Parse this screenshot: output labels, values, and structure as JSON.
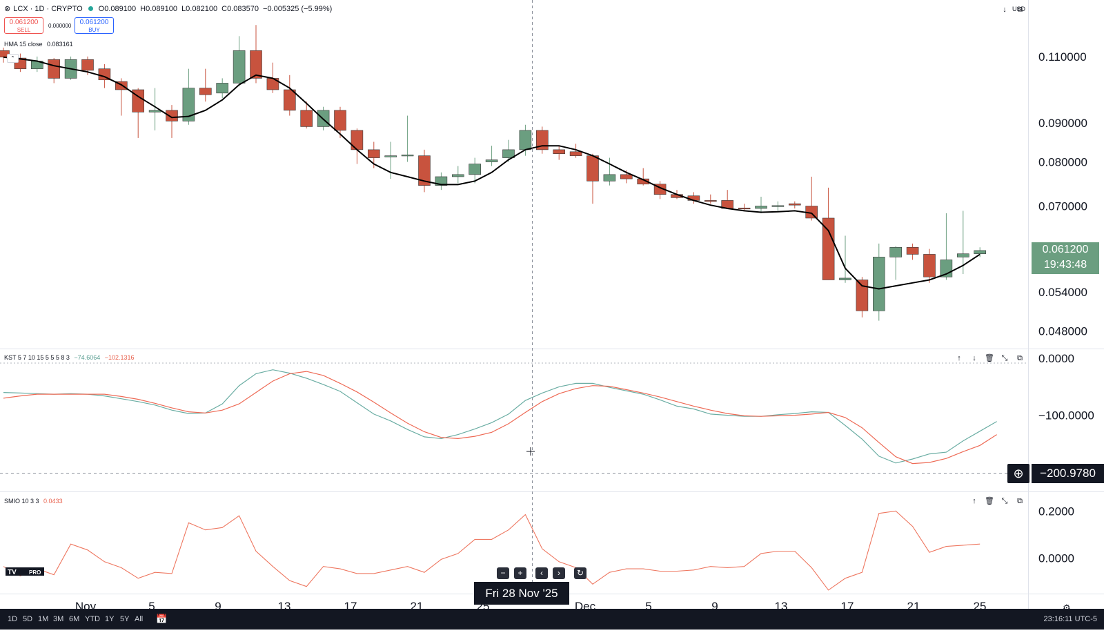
{
  "header": {
    "symbol": "LCX · 1D · CRYPTO",
    "open": "O0.089100",
    "high": "H0.089100",
    "low": "L0.082100",
    "close": "C0.083570",
    "change": "−0.005325 (−5.99%)",
    "sell_price": "0.061200",
    "sell_label": "SELL",
    "spread": "0.000000",
    "buy_price": "0.061200",
    "buy_label": "BUY",
    "currency": "USD"
  },
  "indicators": {
    "hma": {
      "label": "HMA 15 close",
      "value": "0.083161"
    },
    "kst": {
      "label": "KST 5 7 10 15 5 5 5 8 3",
      "value1": "−74.6064",
      "value2": "−102.1316"
    },
    "smio": {
      "label": "SMIO 10 3 3",
      "value": "0.0433"
    }
  },
  "tags": {
    "last_price": "0.061200",
    "countdown": "19:43:48",
    "crosshair_value": "−200.9780",
    "crosshair_date": "Fri 28 Nov '25"
  },
  "ranges": [
    "1D",
    "5D",
    "1M",
    "3M",
    "6M",
    "YTD",
    "1Y",
    "5Y",
    "All"
  ],
  "clock": "23:16:11 UTC-5",
  "colors": {
    "up": "#6b9e80",
    "down": "#c8533e",
    "hma": "#000000",
    "kst_line": "#6aada3",
    "kst_signal": "#ee6a55",
    "smio": "#ee7760",
    "last_price_bg": "#6b9e80"
  },
  "chart_data": [
    {
      "type": "candlestick",
      "title": "LCX · 1D · CRYPTO",
      "x_ticks": [
        "Nov",
        "5",
        "9",
        "13",
        "17",
        "21",
        "25",
        "Dec",
        "5",
        "9",
        "13",
        "17",
        "21",
        "25"
      ],
      "y_ticks": [
        "0.110000",
        "0.090000",
        "0.080000",
        "0.070000",
        "0.054000",
        "0.048000"
      ],
      "y_log": true,
      "ylim": [
        0.0455,
        0.1305
      ],
      "candles": [
        {
          "o": 0.112,
          "h": 0.113,
          "l": 0.108,
          "c": 0.1098
        },
        {
          "o": 0.1095,
          "h": 0.111,
          "l": 0.105,
          "c": 0.106
        },
        {
          "o": 0.106,
          "h": 0.11,
          "l": 0.105,
          "c": 0.1085
        },
        {
          "o": 0.109,
          "h": 0.1095,
          "l": 0.1015,
          "c": 0.103
        },
        {
          "o": 0.103,
          "h": 0.11,
          "l": 0.1025,
          "c": 0.109
        },
        {
          "o": 0.109,
          "h": 0.11,
          "l": 0.104,
          "c": 0.1055
        },
        {
          "o": 0.106,
          "h": 0.1075,
          "l": 0.1,
          "c": 0.1025
        },
        {
          "o": 0.102,
          "h": 0.103,
          "l": 0.092,
          "c": 0.0995
        },
        {
          "o": 0.0995,
          "h": 0.1,
          "l": 0.086,
          "c": 0.093
        },
        {
          "o": 0.093,
          "h": 0.1,
          "l": 0.088,
          "c": 0.0935
        },
        {
          "o": 0.0935,
          "h": 0.095,
          "l": 0.086,
          "c": 0.0905
        },
        {
          "o": 0.0905,
          "h": 0.106,
          "l": 0.0895,
          "c": 0.1
        },
        {
          "o": 0.1,
          "h": 0.106,
          "l": 0.096,
          "c": 0.098
        },
        {
          "o": 0.0985,
          "h": 0.103,
          "l": 0.097,
          "c": 0.1015
        },
        {
          "o": 0.1015,
          "h": 0.117,
          "l": 0.1005,
          "c": 0.112
        },
        {
          "o": 0.112,
          "h": 0.121,
          "l": 0.1015,
          "c": 0.103
        },
        {
          "o": 0.103,
          "h": 0.108,
          "l": 0.0985,
          "c": 0.0995
        },
        {
          "o": 0.0995,
          "h": 0.104,
          "l": 0.092,
          "c": 0.0935
        },
        {
          "o": 0.0935,
          "h": 0.096,
          "l": 0.0885,
          "c": 0.089
        },
        {
          "o": 0.089,
          "h": 0.0945,
          "l": 0.088,
          "c": 0.0935
        },
        {
          "o": 0.0935,
          "h": 0.0945,
          "l": 0.086,
          "c": 0.088
        },
        {
          "o": 0.088,
          "h": 0.0885,
          "l": 0.0795,
          "c": 0.083
        },
        {
          "o": 0.083,
          "h": 0.085,
          "l": 0.0785,
          "c": 0.081
        },
        {
          "o": 0.0812,
          "h": 0.085,
          "l": 0.076,
          "c": 0.0815
        },
        {
          "o": 0.0815,
          "h": 0.092,
          "l": 0.08,
          "c": 0.0817
        },
        {
          "o": 0.0815,
          "h": 0.083,
          "l": 0.073,
          "c": 0.0745
        },
        {
          "o": 0.0745,
          "h": 0.0775,
          "l": 0.0735,
          "c": 0.0765
        },
        {
          "o": 0.0765,
          "h": 0.079,
          "l": 0.075,
          "c": 0.077
        },
        {
          "o": 0.077,
          "h": 0.081,
          "l": 0.075,
          "c": 0.0795
        },
        {
          "o": 0.08,
          "h": 0.084,
          "l": 0.079,
          "c": 0.0805
        },
        {
          "o": 0.081,
          "h": 0.0855,
          "l": 0.08,
          "c": 0.083
        },
        {
          "o": 0.083,
          "h": 0.0895,
          "l": 0.0815,
          "c": 0.088
        },
        {
          "o": 0.088,
          "h": 0.089,
          "l": 0.082,
          "c": 0.083
        },
        {
          "o": 0.083,
          "h": 0.084,
          "l": 0.0805,
          "c": 0.082
        },
        {
          "o": 0.0825,
          "h": 0.0845,
          "l": 0.081,
          "c": 0.0815
        },
        {
          "o": 0.0815,
          "h": 0.082,
          "l": 0.0705,
          "c": 0.0755
        },
        {
          "o": 0.0755,
          "h": 0.081,
          "l": 0.0745,
          "c": 0.077
        },
        {
          "o": 0.077,
          "h": 0.078,
          "l": 0.075,
          "c": 0.076
        },
        {
          "o": 0.076,
          "h": 0.0785,
          "l": 0.0745,
          "c": 0.0748
        },
        {
          "o": 0.0748,
          "h": 0.0755,
          "l": 0.0715,
          "c": 0.0725
        },
        {
          "o": 0.0725,
          "h": 0.0735,
          "l": 0.0715,
          "c": 0.0718
        },
        {
          "o": 0.0722,
          "h": 0.073,
          "l": 0.0705,
          "c": 0.0712
        },
        {
          "o": 0.0712,
          "h": 0.0725,
          "l": 0.0705,
          "c": 0.0711
        },
        {
          "o": 0.0712,
          "h": 0.0735,
          "l": 0.07,
          "c": 0.0695
        },
        {
          "o": 0.0696,
          "h": 0.0705,
          "l": 0.069,
          "c": 0.0694
        },
        {
          "o": 0.0695,
          "h": 0.072,
          "l": 0.0685,
          "c": 0.07
        },
        {
          "o": 0.07,
          "h": 0.071,
          "l": 0.069,
          "c": 0.0701
        },
        {
          "o": 0.0705,
          "h": 0.071,
          "l": 0.0695,
          "c": 0.0702
        },
        {
          "o": 0.07,
          "h": 0.0765,
          "l": 0.067,
          "c": 0.0675
        },
        {
          "o": 0.0675,
          "h": 0.074,
          "l": 0.056,
          "c": 0.056
        },
        {
          "o": 0.056,
          "h": 0.064,
          "l": 0.0555,
          "c": 0.0563
        },
        {
          "o": 0.056,
          "h": 0.0565,
          "l": 0.05,
          "c": 0.051
        },
        {
          "o": 0.051,
          "h": 0.0625,
          "l": 0.0495,
          "c": 0.06
        },
        {
          "o": 0.06,
          "h": 0.062,
          "l": 0.056,
          "c": 0.0618
        },
        {
          "o": 0.0618,
          "h": 0.0625,
          "l": 0.0595,
          "c": 0.0605
        },
        {
          "o": 0.0605,
          "h": 0.0615,
          "l": 0.0555,
          "c": 0.0565
        },
        {
          "o": 0.0565,
          "h": 0.0685,
          "l": 0.056,
          "c": 0.0595
        },
        {
          "o": 0.06,
          "h": 0.069,
          "l": 0.057,
          "c": 0.0606
        },
        {
          "o": 0.0606,
          "h": 0.0618,
          "l": 0.06,
          "c": 0.0612
        }
      ],
      "hma": [
        0.1098,
        0.1092,
        0.1085,
        0.107,
        0.106,
        0.105,
        0.1035,
        0.101,
        0.0975,
        0.0945,
        0.0915,
        0.0918,
        0.0935,
        0.0965,
        0.101,
        0.104,
        0.103,
        0.1,
        0.0955,
        0.091,
        0.087,
        0.083,
        0.0795,
        0.0775,
        0.0765,
        0.0755,
        0.0747,
        0.0747,
        0.0755,
        0.0775,
        0.0805,
        0.083,
        0.084,
        0.084,
        0.083,
        0.0815,
        0.0795,
        0.0775,
        0.0758,
        0.074,
        0.0725,
        0.0712,
        0.0702,
        0.0695,
        0.069,
        0.0687,
        0.0688,
        0.069,
        0.0685,
        0.065,
        0.058,
        0.055,
        0.0545,
        0.055,
        0.0555,
        0.056,
        0.057,
        0.0585,
        0.0605
      ]
    },
    {
      "type": "line",
      "title": "KST 5 7 10 15 5 5 5 8 3",
      "y_ticks": [
        "0.0000",
        "−100.0000"
      ],
      "ylim": [
        -234,
        16
      ],
      "series": [
        {
          "name": "KST",
          "values": [
            -60,
            -61,
            -62,
            -63,
            -62,
            -63,
            -66,
            -71,
            -76,
            -82,
            -91,
            -97,
            -96,
            -80,
            -48,
            -27,
            -20,
            -26,
            -35,
            -46,
            -58,
            -78,
            -98,
            -110,
            -125,
            -138,
            -141,
            -134,
            -124,
            -113,
            -98,
            -74,
            -61,
            -50,
            -44,
            -44,
            -51,
            -57,
            -63,
            -73,
            -84,
            -89,
            -98,
            -100,
            -102,
            -102,
            -99,
            -97,
            -94,
            -95,
            -118,
            -142,
            -172,
            -184,
            -177,
            -168,
            -165,
            -145,
            -128,
            -111
          ]
        },
        {
          "name": "Signal",
          "values": [
            -70,
            -66,
            -63,
            -63,
            -63,
            -63,
            -63,
            -67,
            -72,
            -79,
            -87,
            -94,
            -96,
            -91,
            -80,
            -60,
            -40,
            -27,
            -23,
            -30,
            -44,
            -59,
            -77,
            -96,
            -114,
            -129,
            -139,
            -141,
            -137,
            -130,
            -115,
            -95,
            -76,
            -62,
            -53,
            -48,
            -49,
            -55,
            -61,
            -68,
            -76,
            -84,
            -91,
            -97,
            -101,
            -102,
            -101,
            -100,
            -98,
            -95,
            -104,
            -122,
            -148,
            -173,
            -185,
            -183,
            -176,
            -164,
            -153,
            -134
          ]
        }
      ],
      "reference_line": -200.978
    },
    {
      "type": "line",
      "title": "SMIO 10 3 3",
      "y_ticks": [
        "0.2000",
        "0.0000"
      ],
      "ylim": [
        -0.15,
        0.28
      ],
      "series": [
        {
          "name": "SMIO",
          "values": [
            -0.035,
            -0.075,
            -0.045,
            -0.07,
            0.06,
            0.035,
            -0.015,
            -0.04,
            -0.085,
            -0.06,
            -0.065,
            0.15,
            0.12,
            0.13,
            0.18,
            0.03,
            -0.035,
            -0.095,
            -0.12,
            -0.035,
            -0.045,
            -0.065,
            -0.065,
            -0.05,
            -0.035,
            -0.06,
            -0.005,
            0.02,
            0.08,
            0.08,
            0.12,
            0.185,
            0.04,
            -0.015,
            -0.04,
            -0.11,
            -0.06,
            -0.045,
            -0.045,
            -0.055,
            -0.055,
            -0.05,
            -0.035,
            -0.04,
            -0.035,
            0.02,
            0.03,
            0.03,
            -0.04,
            -0.135,
            -0.085,
            -0.06,
            0.19,
            0.2,
            0.135,
            0.025,
            0.05,
            0.055,
            0.06
          ]
        }
      ]
    }
  ]
}
